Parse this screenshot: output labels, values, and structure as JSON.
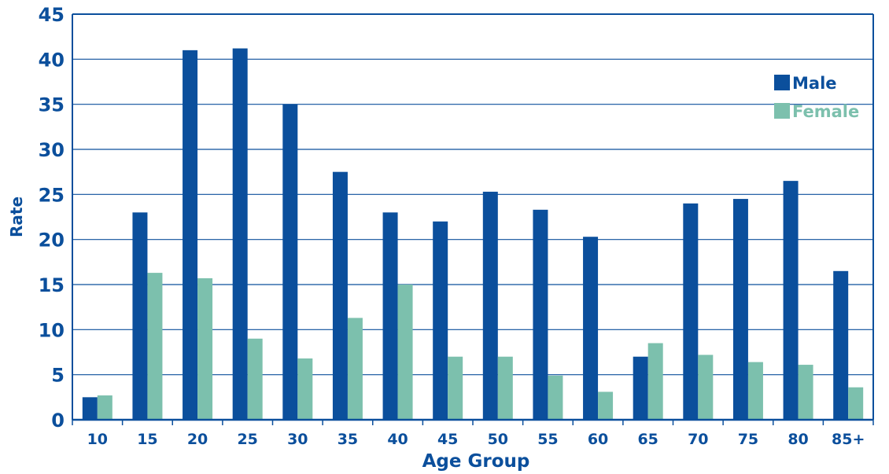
{
  "chart_data": {
    "type": "bar",
    "title": "",
    "xlabel": "Age Group",
    "ylabel": "Rate",
    "categories": [
      "10",
      "15",
      "20",
      "25",
      "30",
      "35",
      "40",
      "45",
      "50",
      "55",
      "60",
      "65",
      "70",
      "75",
      "80",
      "85+"
    ],
    "series": [
      {
        "name": "Male",
        "color": "#0b4f9c",
        "values": [
          2.5,
          23.0,
          41.0,
          41.2,
          35.0,
          27.5,
          23.0,
          22.0,
          25.3,
          23.3,
          20.3,
          7.0,
          24.0,
          24.5,
          26.5,
          16.5
        ]
      },
      {
        "name": "Female",
        "color": "#7cc0ad",
        "values": [
          2.7,
          16.3,
          15.7,
          9.0,
          6.8,
          11.3,
          15.0,
          7.0,
          7.0,
          4.9,
          3.1,
          8.5,
          7.2,
          6.4,
          6.1,
          3.6
        ]
      }
    ],
    "yticks": [
      0,
      5,
      10,
      15,
      20,
      25,
      30,
      35,
      40,
      45
    ],
    "ylim": [
      0,
      45
    ],
    "grid": true,
    "legend": "top-right",
    "axis_color": "#0b4f9c"
  }
}
